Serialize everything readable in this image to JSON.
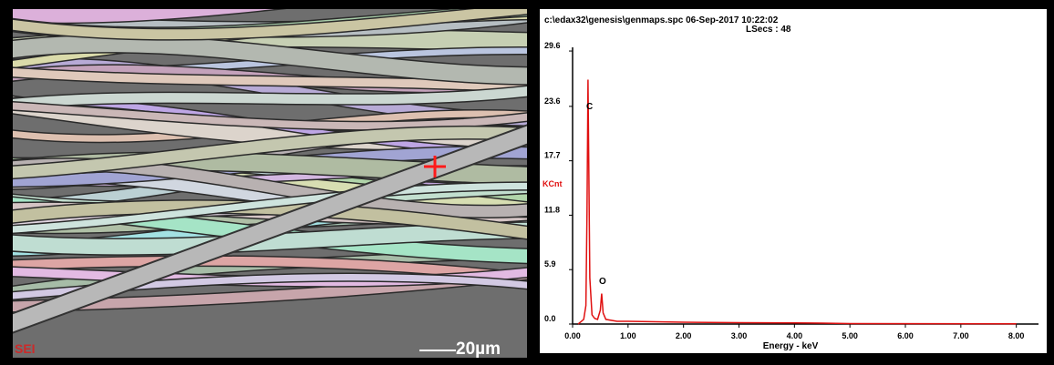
{
  "sem_image": {
    "mode_label": "SEI",
    "scale_bar": "20µm"
  },
  "chart_data": {
    "type": "line",
    "title": "c:\\edax32\\genesis\\genmaps.spc  06-Sep-2017 10:22:02",
    "subtitle": "LSecs : 48",
    "x_label": "Energy - keV",
    "y_label": "KCnt",
    "annotations": [
      "C",
      "O"
    ],
    "x": [
      0.1,
      0.2,
      0.24,
      0.26,
      0.277,
      0.29,
      0.31,
      0.35,
      0.4,
      0.45,
      0.5,
      0.525,
      0.55,
      0.6,
      0.8,
      1.0,
      1.5,
      2.0,
      3.0,
      4.0,
      4.5,
      5.0,
      8.0
    ],
    "series": [
      {
        "name": "spectrum",
        "color": "#e01010",
        "values": [
          0,
          0.5,
          2,
          12,
          26.5,
          19,
          5,
          1,
          0.6,
          0.5,
          1.5,
          3.3,
          1.2,
          0.5,
          0.3,
          0.3,
          0.25,
          0.2,
          0.15,
          0.12,
          0.1,
          0.05,
          0.02
        ]
      }
    ],
    "xlim": [
      0,
      8.4
    ],
    "ylim": [
      0,
      30
    ],
    "xticks": [
      {
        "value": 0,
        "label": "0.00"
      },
      {
        "value": 1,
        "label": "1.00"
      },
      {
        "value": 2,
        "label": "2.00"
      },
      {
        "value": 3,
        "label": "3.00"
      },
      {
        "value": 4,
        "label": "4.00"
      },
      {
        "value": 5,
        "label": "5.00"
      },
      {
        "value": 6,
        "label": "6.00"
      },
      {
        "value": 7,
        "label": "7.00"
      },
      {
        "value": 8,
        "label": "8.00"
      }
    ],
    "yticks": [
      {
        "value": 0,
        "label": "0.0"
      },
      5.9,
      11.8,
      17.7,
      23.6,
      29.6
    ]
  }
}
